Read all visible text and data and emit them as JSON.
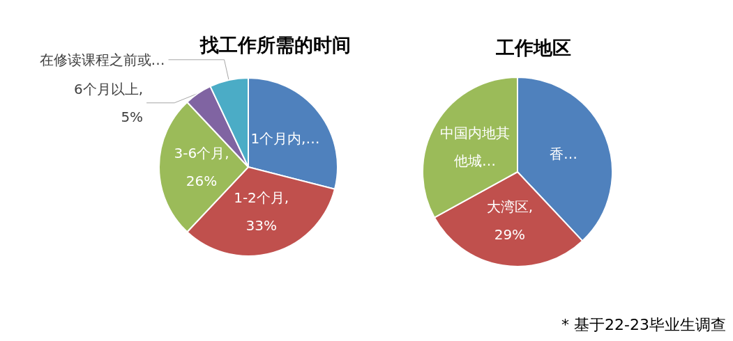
{
  "chart_data": [
    {
      "type": "pie",
      "title": "找工作所需的时间",
      "categories": [
        "1个月内",
        "1-2个月",
        "3-6个月",
        "6个月以上",
        "在修读课程之前或…"
      ],
      "values": [
        29,
        33,
        26,
        5,
        7
      ],
      "colors": [
        "#4f81bd",
        "#c0504d",
        "#9bbb59",
        "#8064a2",
        "#4bacc6"
      ],
      "value_labels": [
        ",…",
        ",\n33%",
        ",\n26%",
        ",\n5%",
        null
      ],
      "legend": false
    },
    {
      "type": "pie",
      "title": "工作地区",
      "categories": [
        "香…",
        "大湾区",
        "中国内地其他城…"
      ],
      "values": [
        38,
        29,
        33
      ],
      "colors": [
        "#4f81bd",
        "#c0504d",
        "#9bbb59"
      ],
      "value_labels": [
        null,
        ",\n29%",
        null
      ],
      "legend": false,
      "annotations": [
        "* 基于22-23毕业生调查"
      ]
    }
  ]
}
